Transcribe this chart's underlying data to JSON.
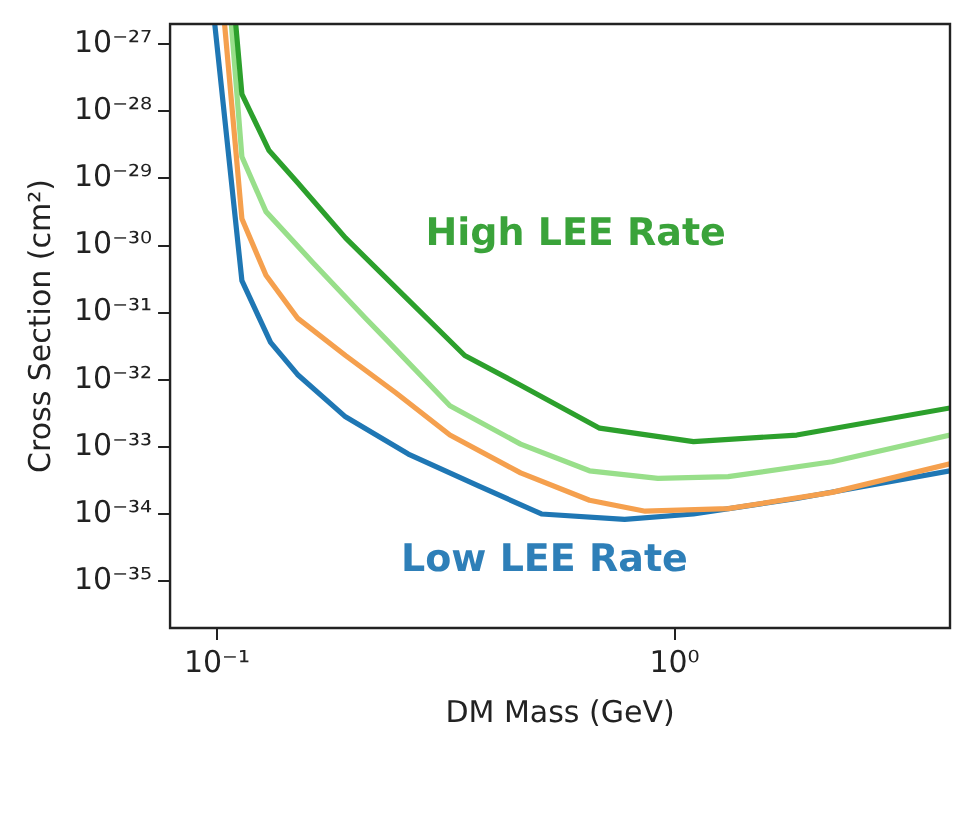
{
  "chart_data": {
    "type": "line",
    "xlabel": "DM Mass (GeV)",
    "ylabel": "Cross Section (cm²)",
    "log": "xy",
    "grid": false,
    "legend": false,
    "marker": "none",
    "line_style": "solid",
    "xlim": [
      0.079,
      4
    ],
    "ylim": [
      2e-36,
      2e-27
    ],
    "xticks": [
      {
        "value": 0.1,
        "label": "10⁻¹"
      },
      {
        "value": 1,
        "label": "10⁰"
      }
    ],
    "yticks": [
      {
        "value": 1e-35,
        "label": "10⁻³⁵"
      },
      {
        "value": 1e-34,
        "label": "10⁻³⁴"
      },
      {
        "value": 1e-33,
        "label": "10⁻³³"
      },
      {
        "value": 1e-32,
        "label": "10⁻³²"
      },
      {
        "value": 1e-31,
        "label": "10⁻³¹"
      },
      {
        "value": 1e-30,
        "label": "10⁻³⁰"
      },
      {
        "value": 1e-29,
        "label": "10⁻²⁹"
      },
      {
        "value": 1e-28,
        "label": "10⁻²⁸"
      },
      {
        "value": 1e-27,
        "label": "10⁻²⁷"
      }
    ],
    "annotations": [
      "High LEE Rate",
      "Low LEE Rate"
    ],
    "series": [
      {
        "color": "#2ca02c",
        "x": [
          0.11,
          0.1134,
          0.13,
          0.15,
          0.191,
          0.254,
          0.348,
          0.461,
          0.686,
          1.1,
          1.85,
          4.0
        ],
        "values": [
          1.9e-27,
          1.8e-28,
          2.6e-29,
          8.7e-30,
          1.3e-30,
          1.9e-31,
          2.3e-32,
          8.3e-33,
          1.9e-33,
          1.2e-33,
          1.5e-33,
          3.8e-33
        ]
      },
      {
        "color": "#98df8a",
        "x": [
          0.1076,
          0.1134,
          0.128,
          0.162,
          0.211,
          0.236,
          0.323,
          0.461,
          0.652,
          0.92,
          1.31,
          2.21,
          4.0
        ],
        "values": [
          1.9e-27,
          2.1e-29,
          3.2e-30,
          5.6e-31,
          8.3e-32,
          3.8e-32,
          4.1e-33,
          1.1e-33,
          4.4e-34,
          3.4e-34,
          3.6e-34,
          6e-34,
          1.5e-33
        ]
      },
      {
        "color": "#f5a04e",
        "x": [
          0.104,
          0.1134,
          0.128,
          0.15,
          0.191,
          0.246,
          0.323,
          0.461,
          0.652,
          0.863,
          1.31,
          2.21,
          4.0
        ],
        "values": [
          1.9e-27,
          2.5e-30,
          3.6e-31,
          8.3e-32,
          2.3e-32,
          6.4e-33,
          1.5e-33,
          4.1e-34,
          1.6e-34,
          1.1e-34,
          1.2e-34,
          2.1e-34,
          5.6e-34
        ]
      },
      {
        "color": "#1f77b4",
        "x": [
          0.099,
          0.1134,
          0.131,
          0.15,
          0.191,
          0.262,
          0.374,
          0.512,
          0.778,
          1.1,
          1.85,
          4.0
        ],
        "values": [
          1.9e-27,
          3e-31,
          3.6e-32,
          1.2e-32,
          2.8e-33,
          7.8e-34,
          2.6e-34,
          1e-34,
          8.3e-35,
          1e-34,
          1.7e-34,
          4.4e-34
        ]
      }
    ]
  }
}
